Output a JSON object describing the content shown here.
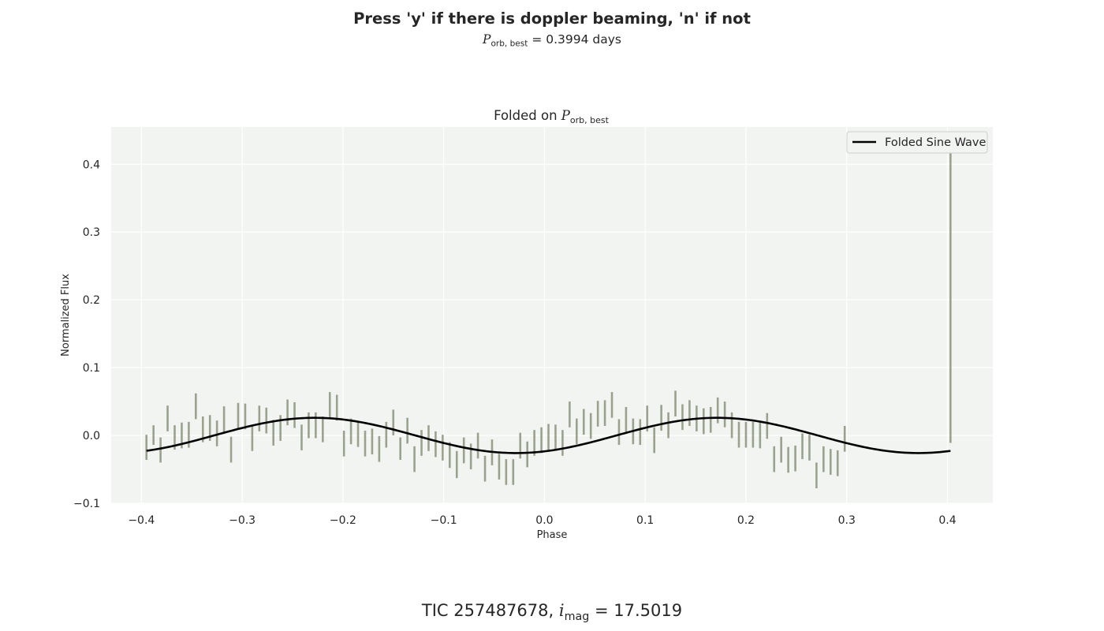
{
  "figure": {
    "suptitle": "Press 'y' if there is doppler beaming, 'n' if not",
    "subtitle": {
      "symbol": "P",
      "subscript": "orb, best",
      "eq": "= 0.3994 days"
    },
    "footer": {
      "prefix": "TIC 257487678,",
      "symbol": "i",
      "subscript": "mag",
      "eq": "= 17.5019"
    }
  },
  "colors": {
    "plot_bg": "#eaeaf2",
    "axes_bg": "#f2f4f2",
    "grid": "#ffffff",
    "errorbar": "#9aa28e",
    "line": "#000000",
    "text": "#262626"
  },
  "chart_data": {
    "type": "line",
    "title_prefix": "Folded on",
    "title_symbol": "P",
    "title_subscript": "orb, best",
    "xlabel": "Phase",
    "ylabel": "Normalized Flux",
    "xlim": [
      -0.43,
      0.445
    ],
    "ylim": [
      -0.1,
      0.455
    ],
    "xticks": [
      -0.4,
      -0.3,
      -0.2,
      -0.1,
      0.0,
      0.1,
      0.2,
      0.3,
      0.4
    ],
    "xtick_labels": [
      "−0.4",
      "−0.3",
      "−0.2",
      "−0.1",
      "0.0",
      "0.1",
      "0.2",
      "0.3",
      "0.4"
    ],
    "yticks": [
      -0.1,
      0.0,
      0.1,
      0.2,
      0.3,
      0.4
    ],
    "ytick_labels": [
      "−0.1",
      "0.0",
      "0.1",
      "0.2",
      "0.3",
      "0.4"
    ],
    "grid": true,
    "legend": {
      "position": "top-right",
      "entries": [
        "Folded Sine Wave"
      ]
    },
    "errorbars": [
      [
        -0.395,
        0.001,
        -0.036
      ],
      [
        -0.388,
        0.015,
        -0.014
      ],
      [
        -0.381,
        -0.003,
        -0.04
      ],
      [
        -0.374,
        0.044,
        0.006
      ],
      [
        -0.367,
        0.015,
        -0.021
      ],
      [
        -0.36,
        0.019,
        -0.019
      ],
      [
        -0.353,
        0.02,
        -0.018
      ],
      [
        -0.346,
        0.062,
        0.024
      ],
      [
        -0.339,
        0.028,
        -0.01
      ],
      [
        -0.332,
        0.03,
        -0.008
      ],
      [
        -0.325,
        0.022,
        -0.016
      ],
      [
        -0.318,
        0.043,
        0.005
      ],
      [
        -0.311,
        -0.002,
        -0.04
      ],
      [
        -0.304,
        0.048,
        0.01
      ],
      [
        -0.297,
        0.047,
        0.009
      ],
      [
        -0.29,
        0.015,
        -0.023
      ],
      [
        -0.283,
        0.044,
        0.006
      ],
      [
        -0.276,
        0.041,
        0.003
      ],
      [
        -0.269,
        0.023,
        -0.015
      ],
      [
        -0.262,
        0.03,
        -0.008
      ],
      [
        -0.255,
        0.053,
        0.015
      ],
      [
        -0.248,
        0.049,
        0.011
      ],
      [
        -0.241,
        0.016,
        -0.022
      ],
      [
        -0.234,
        0.034,
        -0.004
      ],
      [
        -0.227,
        0.034,
        -0.004
      ],
      [
        -0.22,
        0.028,
        -0.01
      ],
      [
        -0.213,
        0.064,
        0.026
      ],
      [
        -0.206,
        0.06,
        0.022
      ],
      [
        -0.199,
        0.007,
        -0.031
      ],
      [
        -0.192,
        0.025,
        -0.013
      ],
      [
        -0.185,
        0.021,
        -0.017
      ],
      [
        -0.178,
        0.007,
        -0.031
      ],
      [
        -0.171,
        0.01,
        -0.028
      ],
      [
        -0.164,
        -0.001,
        -0.039
      ],
      [
        -0.157,
        0.02,
        -0.018
      ],
      [
        -0.15,
        0.038,
        0.0
      ],
      [
        -0.143,
        -0.003,
        -0.036
      ],
      [
        -0.136,
        0.026,
        -0.012
      ],
      [
        -0.129,
        -0.016,
        -0.054
      ],
      [
        -0.122,
        0.008,
        -0.03
      ],
      [
        -0.115,
        0.015,
        -0.023
      ],
      [
        -0.108,
        0.006,
        -0.032
      ],
      [
        -0.101,
        0.001,
        -0.037
      ],
      [
        -0.094,
        -0.01,
        -0.048
      ],
      [
        -0.087,
        -0.023,
        -0.063
      ],
      [
        -0.08,
        -0.003,
        -0.041
      ],
      [
        -0.073,
        -0.012,
        -0.05
      ],
      [
        -0.066,
        0.004,
        -0.034
      ],
      [
        -0.059,
        -0.03,
        -0.068
      ],
      [
        -0.052,
        -0.006,
        -0.044
      ],
      [
        -0.045,
        -0.027,
        -0.065
      ],
      [
        -0.038,
        -0.035,
        -0.073
      ],
      [
        -0.031,
        -0.035,
        -0.073
      ],
      [
        -0.024,
        0.004,
        -0.034
      ],
      [
        -0.017,
        -0.009,
        -0.047
      ],
      [
        -0.01,
        0.008,
        -0.03
      ],
      [
        -0.003,
        0.012,
        -0.026
      ],
      [
        0.004,
        0.017,
        -0.021
      ],
      [
        0.011,
        0.016,
        -0.022
      ],
      [
        0.018,
        0.008,
        -0.03
      ],
      [
        0.025,
        0.05,
        0.012
      ],
      [
        0.032,
        0.025,
        -0.013
      ],
      [
        0.039,
        0.039,
        0.001
      ],
      [
        0.046,
        0.033,
        -0.005
      ],
      [
        0.053,
        0.051,
        0.013
      ],
      [
        0.06,
        0.052,
        0.014
      ],
      [
        0.067,
        0.064,
        0.026
      ],
      [
        0.074,
        0.024,
        -0.014
      ],
      [
        0.081,
        0.042,
        0.004
      ],
      [
        0.088,
        0.025,
        -0.013
      ],
      [
        0.095,
        0.024,
        -0.014
      ],
      [
        0.102,
        0.044,
        0.006
      ],
      [
        0.109,
        0.012,
        -0.026
      ],
      [
        0.116,
        0.045,
        0.007
      ],
      [
        0.123,
        0.034,
        -0.004
      ],
      [
        0.13,
        0.066,
        0.028
      ],
      [
        0.137,
        0.046,
        0.008
      ],
      [
        0.144,
        0.052,
        0.014
      ],
      [
        0.151,
        0.044,
        0.006
      ],
      [
        0.158,
        0.04,
        0.002
      ],
      [
        0.165,
        0.042,
        0.004
      ],
      [
        0.172,
        0.056,
        0.018
      ],
      [
        0.179,
        0.05,
        0.012
      ],
      [
        0.186,
        0.034,
        -0.004
      ],
      [
        0.193,
        0.02,
        -0.018
      ],
      [
        0.2,
        0.02,
        -0.018
      ],
      [
        0.207,
        0.02,
        -0.018
      ],
      [
        0.214,
        0.019,
        -0.019
      ],
      [
        0.221,
        0.033,
        -0.005
      ],
      [
        0.228,
        -0.016,
        -0.054
      ],
      [
        0.235,
        -0.002,
        -0.04
      ],
      [
        0.242,
        -0.017,
        -0.055
      ],
      [
        0.249,
        -0.015,
        -0.053
      ],
      [
        0.256,
        0.003,
        -0.035
      ],
      [
        0.263,
        0.001,
        -0.037
      ],
      [
        0.27,
        -0.04,
        -0.078
      ],
      [
        0.277,
        -0.016,
        -0.054
      ],
      [
        0.284,
        -0.02,
        -0.058
      ],
      [
        0.291,
        -0.022,
        -0.06
      ],
      [
        0.298,
        0.014,
        -0.024
      ],
      [
        0.403,
        0.425,
        -0.011
      ]
    ],
    "sine": {
      "name": "Folded Sine Wave",
      "amplitude": 0.026,
      "peak_phase": -0.228,
      "period_phase": 0.3994,
      "xrange": [
        -0.395,
        0.403
      ]
    }
  }
}
